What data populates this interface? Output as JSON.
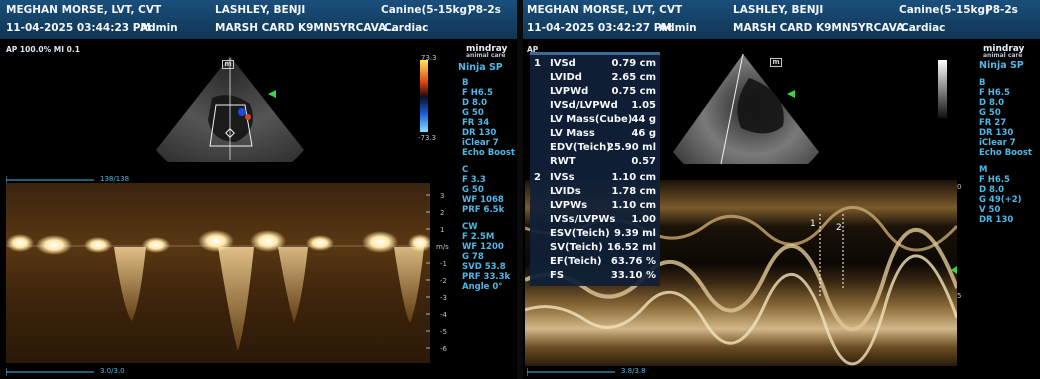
{
  "left": {
    "header": {
      "operator": "MEGHAN MORSE, LVT, CVT",
      "patient_name": "LASHLEY, BENJI",
      "species": "Canine(5-15kg)",
      "probe": "P8-2s",
      "datetime": "11-04-2025  03:44:23 PM",
      "user": "Admin",
      "study_id": "MARSH CARD K9MN5YRCAVA...",
      "exam_type": "Cardiac"
    },
    "status": "AP 100.0%  MI 0.1",
    "logo": "mindray",
    "logo_sub": "animal care",
    "preset": "Ninja SP",
    "m_marker": "m",
    "colorbar_max": "73.3",
    "colorbar_min": "-73.3",
    "b_params": [
      "B",
      "F H6.5",
      "D 8.0",
      "G 50",
      "FR 34",
      "DR 130",
      "iClear 7",
      "Echo Boost"
    ],
    "c_params": [
      "C",
      "F 3.3",
      "G 50",
      "WF 1068",
      "PRF 6.5k"
    ],
    "cw_params": [
      "CW",
      "F 2.5M",
      "WF 1200",
      "G 78",
      "SVD 53.8",
      "PRF 33.3k",
      "Angle 0°"
    ],
    "top_scroll": "138/138",
    "bottom_scroll": "3.0/3.0",
    "velocity_unit": "m/s",
    "velocity_ticks": [
      "3",
      "2",
      "1",
      "-1",
      "-2",
      "-3",
      "-4",
      "-5",
      "-6"
    ]
  },
  "right": {
    "header": {
      "operator": "MEGHAN MORSE, LVT, CVT",
      "patient_name": "LASHLEY, BENJI",
      "species": "Canine(5-15kg)",
      "probe": "P8-2s",
      "datetime": "11-04-2025  03:42:27 PM",
      "user": "Admin",
      "study_id": "MARSH CARD K9MN5YRCAVA...",
      "exam_type": "Cardiac"
    },
    "status_fragment": "AP",
    "logo": "mindray",
    "logo_sub": "animal care",
    "preset": "Ninja SP",
    "m_marker": "m",
    "b_params": [
      "B",
      "F H6.5",
      "D 8.0",
      "G 50",
      "FR 27",
      "DR 130",
      "iClear 7",
      "Echo Boost"
    ],
    "m_params": [
      "M",
      "F H6.5",
      "D 8.0",
      "G 49(+2)",
      "V 50",
      "DR 130"
    ],
    "bottom_scroll": "3.8/3.8",
    "depth_ticks": [
      "0",
      "5"
    ],
    "caliper_labels": [
      "1",
      "2"
    ],
    "measurements": [
      {
        "index": "1",
        "label": "IVSd",
        "value": "0.79 cm"
      },
      {
        "index": "",
        "label": "LVIDd",
        "value": "2.65 cm"
      },
      {
        "index": "",
        "label": "LVPWd",
        "value": "0.75 cm"
      },
      {
        "index": "",
        "label": "IVSd/LVPWd",
        "value": "1.05"
      },
      {
        "index": "",
        "label": "LV Mass(Cube)",
        "value": "44 g"
      },
      {
        "index": "",
        "label": "LV Mass",
        "value": "46 g"
      },
      {
        "index": "",
        "label": "EDV(Teich)",
        "value": "25.90 ml"
      },
      {
        "index": "",
        "label": "RWT",
        "value": "0.57"
      },
      {
        "index": "2",
        "label": "IVSs",
        "value": "1.10 cm"
      },
      {
        "index": "",
        "label": "LVIDs",
        "value": "1.78 cm"
      },
      {
        "index": "",
        "label": "LVPWs",
        "value": "1.10 cm"
      },
      {
        "index": "",
        "label": "IVSs/LVPWs",
        "value": "1.00"
      },
      {
        "index": "",
        "label": "ESV(Teich)",
        "value": "9.39 ml"
      },
      {
        "index": "",
        "label": "SV(Teich)",
        "value": "16.52 ml"
      },
      {
        "index": "",
        "label": "EF(Teich)",
        "value": "63.76 %"
      },
      {
        "index": "",
        "label": "FS",
        "value": "33.10 %"
      }
    ]
  }
}
